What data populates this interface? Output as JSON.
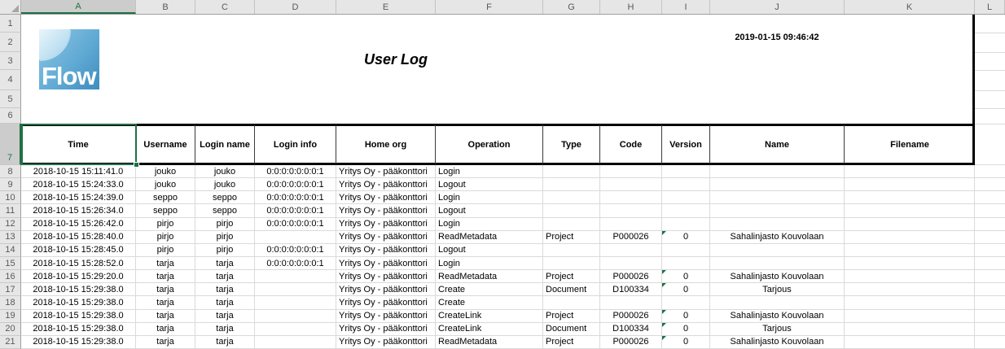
{
  "spreadsheet": {
    "column_letters": [
      "A",
      "B",
      "C",
      "D",
      "E",
      "F",
      "G",
      "H",
      "I",
      "J",
      "K",
      "L"
    ],
    "selected_column": "A",
    "row_numbers": [
      1,
      2,
      3,
      4,
      5,
      6,
      7,
      8,
      9,
      10,
      11,
      12,
      13,
      14,
      15,
      16,
      17,
      18,
      19,
      20,
      21
    ],
    "selected_row": 7,
    "selected_cell": "A7"
  },
  "report": {
    "logo_text": "Flow",
    "title": "User Log",
    "generated_at": "2019-01-15 09:46:42"
  },
  "table": {
    "headers": [
      "Time",
      "Username",
      "Login name",
      "Login info",
      "Home org",
      "Operation",
      "Type",
      "Code",
      "Version",
      "Name",
      "Filename"
    ],
    "rows": [
      [
        "2018-10-15 15:11:41.0",
        "jouko",
        "jouko",
        "0:0:0:0:0:0:0:1",
        "Yritys Oy - pääkonttori",
        "Login",
        "",
        "",
        "",
        "",
        ""
      ],
      [
        "2018-10-15 15:24:33.0",
        "jouko",
        "jouko",
        "0:0:0:0:0:0:0:1",
        "Yritys Oy - pääkonttori",
        "Logout",
        "",
        "",
        "",
        "",
        ""
      ],
      [
        "2018-10-15 15:24:39.0",
        "seppo",
        "seppo",
        "0:0:0:0:0:0:0:1",
        "Yritys Oy - pääkonttori",
        "Login",
        "",
        "",
        "",
        "",
        ""
      ],
      [
        "2018-10-15 15:26:34.0",
        "seppo",
        "seppo",
        "0:0:0:0:0:0:0:1",
        "Yritys Oy - pääkonttori",
        "Logout",
        "",
        "",
        "",
        "",
        ""
      ],
      [
        "2018-10-15 15:26:42.0",
        "pirjo",
        "pirjo",
        "0:0:0:0:0:0:0:1",
        "Yritys Oy - pääkonttori",
        "Login",
        "",
        "",
        "",
        "",
        ""
      ],
      [
        "2018-10-15 15:28:40.0",
        "pirjo",
        "pirjo",
        "",
        "Yritys Oy - pääkonttori",
        "ReadMetadata",
        "Project",
        "P000026",
        "0",
        "Sahalinjasto Kouvolaan",
        ""
      ],
      [
        "2018-10-15 15:28:45.0",
        "pirjo",
        "pirjo",
        "0:0:0:0:0:0:0:1",
        "Yritys Oy - pääkonttori",
        "Logout",
        "",
        "",
        "",
        "",
        ""
      ],
      [
        "2018-10-15 15:28:52.0",
        "tarja",
        "tarja",
        "0:0:0:0:0:0:0:1",
        "Yritys Oy - pääkonttori",
        "Login",
        "",
        "",
        "",
        "",
        ""
      ],
      [
        "2018-10-15 15:29:20.0",
        "tarja",
        "tarja",
        "",
        "Yritys Oy - pääkonttori",
        "ReadMetadata",
        "Project",
        "P000026",
        "0",
        "Sahalinjasto Kouvolaan",
        ""
      ],
      [
        "2018-10-15 15:29:38.0",
        "tarja",
        "tarja",
        "",
        "Yritys Oy - pääkonttori",
        "Create",
        "Document",
        "D100334",
        "0",
        "Tarjous",
        ""
      ],
      [
        "2018-10-15 15:29:38.0",
        "tarja",
        "tarja",
        "",
        "Yritys Oy - pääkonttori",
        "Create",
        "",
        "",
        "",
        "",
        ""
      ],
      [
        "2018-10-15 15:29:38.0",
        "tarja",
        "tarja",
        "",
        "Yritys Oy - pääkonttori",
        "CreateLink",
        "Project",
        "P000026",
        "0",
        "Sahalinjasto Kouvolaan",
        ""
      ],
      [
        "2018-10-15 15:29:38.0",
        "tarja",
        "tarja",
        "",
        "Yritys Oy - pääkonttori",
        "CreateLink",
        "Document",
        "D100334",
        "0",
        "Tarjous",
        ""
      ],
      [
        "2018-10-15 15:29:38.0",
        "tarja",
        "tarja",
        "",
        "Yritys Oy - pääkonttori",
        "ReadMetadata",
        "Project",
        "P000026",
        "0",
        "Sahalinjasto Kouvolaan",
        ""
      ]
    ]
  },
  "colors": {
    "accent_green": "#1e7145",
    "error_flag_green": "#1e7145",
    "chrome_gray": "#e6e6e6",
    "gridline_gray": "#dadada",
    "logo_blue_light": "#9fd0e8",
    "logo_blue_dark": "#3e8cbe"
  }
}
